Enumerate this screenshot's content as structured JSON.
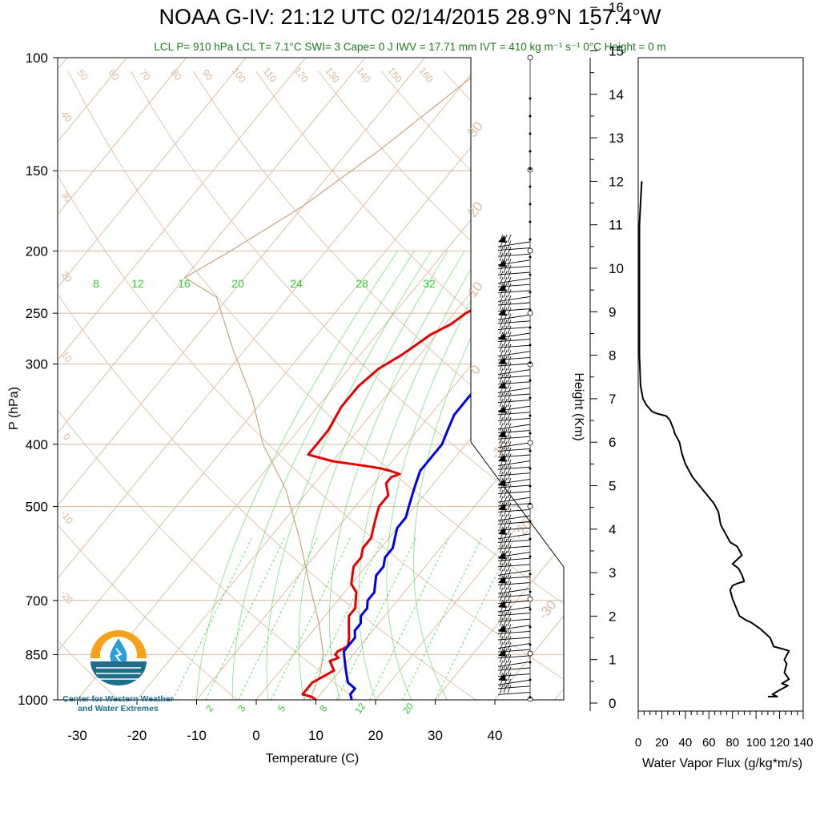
{
  "title": "NOAA G-IV: 21:12 UTC 02/14/2015  28.9°N 157.4°W",
  "subtitle": "LCL P= 910 hPa  LCL T= 7.1°C  SWI= 3  Cape= 0 J  IWV = 17.71 mm  IVT = 410 kg m⁻¹ s⁻¹  0°C Height = 0 m",
  "logo": {
    "line1": "Center for Western Weather",
    "line2": "and Water Extremes",
    "colors": {
      "sun": "#f5a21b",
      "water": "#1f6f8b",
      "drop": "#2b9fd8"
    }
  },
  "colors": {
    "temperature": "#e60000",
    "dewpoint": "#0000e6",
    "isotherms": "#d9b99b",
    "mixing_ratio": "#33cc33",
    "parcel": "#c8a57f",
    "flux": "#000000",
    "subtitle": "#1f7a1f"
  },
  "chart_data": [
    {
      "type": "line",
      "name": "skew-t",
      "xlabel": "Temperature (C)",
      "ylabel": "P (hPa)",
      "xlim": [
        -35,
        52
      ],
      "ylim": [
        1000,
        100
      ],
      "y_scale": "log",
      "x_ticks": [
        -30,
        -20,
        -10,
        0,
        10,
        20,
        30,
        40
      ],
      "y_ticks": [
        100,
        150,
        200,
        250,
        300,
        400,
        500,
        700,
        850,
        1000
      ],
      "grid": true,
      "isotherm_labels_top": [
        50,
        60,
        70,
        80,
        90,
        100,
        110,
        120,
        130,
        140,
        150,
        160
      ],
      "isotherm_labels_left": [
        40,
        30,
        20,
        10,
        0,
        -10,
        -20
      ],
      "isotherm_labels_right": [
        30,
        20,
        10,
        0,
        -10,
        -20,
        -30
      ],
      "mixing_ratio_labels_top": [
        8,
        12,
        16,
        20,
        24,
        28,
        32
      ],
      "mixing_ratio_labels_bottom": [
        2,
        3,
        5,
        8,
        12,
        20
      ],
      "series": [
        {
          "key": "temperature",
          "points": [
            [
              10,
              1000
            ],
            [
              9,
              990
            ],
            [
              7,
              980
            ],
            [
              7,
              960
            ],
            [
              7,
              940
            ],
            [
              8,
              920
            ],
            [
              9,
              900
            ],
            [
              8,
              885
            ],
            [
              7,
              870
            ],
            [
              8,
              860
            ],
            [
              7,
              850
            ],
            [
              7,
              840
            ],
            [
              8,
              825
            ],
            [
              7,
              800
            ],
            [
              6,
              780
            ],
            [
              5,
              760
            ],
            [
              4,
              740
            ],
            [
              4,
              720
            ],
            [
              3,
              700
            ],
            [
              2,
              680
            ],
            [
              0,
              660
            ],
            [
              -1,
              640
            ],
            [
              -2,
              620
            ],
            [
              -2,
              600
            ],
            [
              -3,
              580
            ],
            [
              -3,
              560
            ],
            [
              -4,
              540
            ],
            [
              -5,
              520
            ],
            [
              -6,
              500
            ],
            [
              -6,
              480
            ],
            [
              -7,
              470
            ],
            [
              -8,
              460
            ],
            [
              -8,
              450
            ],
            [
              -7,
              445
            ],
            [
              -9,
              440
            ],
            [
              -11,
              436
            ],
            [
              -14,
              432
            ],
            [
              -20,
              425
            ],
            [
              -25,
              415
            ],
            [
              -25,
              400
            ],
            [
              -25,
              380
            ],
            [
              -26,
              350
            ],
            [
              -26,
              325
            ],
            [
              -25,
              305
            ],
            [
              -23,
              290
            ],
            [
              -22,
              280
            ],
            [
              -21,
              270
            ],
            [
              -19,
              260
            ],
            [
              -18,
              250
            ],
            [
              -16,
              240
            ],
            [
              -15,
              230
            ],
            [
              -14,
              220
            ],
            [
              -13,
              210
            ],
            [
              -12,
              200
            ],
            [
              -12,
              193
            ]
          ]
        },
        {
          "key": "dewpoint",
          "points": [
            [
              16,
              1000
            ],
            [
              15,
              980
            ],
            [
              15,
              960
            ],
            [
              13,
              940
            ],
            [
              12,
              920
            ],
            [
              11,
              900
            ],
            [
              10,
              880
            ],
            [
              9,
              860
            ],
            [
              8,
              840
            ],
            [
              8,
              820
            ],
            [
              8,
              800
            ],
            [
              7,
              780
            ],
            [
              7,
              760
            ],
            [
              6,
              740
            ],
            [
              6,
              720
            ],
            [
              5,
              700
            ],
            [
              5,
              680
            ],
            [
              4,
              660
            ],
            [
              3,
              640
            ],
            [
              3,
              620
            ],
            [
              2,
              600
            ],
            [
              2,
              580
            ],
            [
              1,
              560
            ],
            [
              0,
              540
            ],
            [
              0,
              520
            ],
            [
              -1,
              500
            ],
            [
              -2,
              480
            ],
            [
              -3,
              460
            ],
            [
              -4,
              440
            ],
            [
              -4,
              420
            ],
            [
              -4,
              400
            ],
            [
              -5,
              380
            ],
            [
              -6,
              360
            ],
            [
              -6,
              340
            ],
            [
              -6,
              320
            ],
            [
              -5,
              305
            ],
            [
              -3,
              295
            ],
            [
              -1,
              285
            ],
            [
              0,
              275
            ],
            [
              1,
              265
            ],
            [
              2,
              255
            ],
            [
              3,
              245
            ],
            [
              4,
              235
            ],
            [
              5,
              225
            ],
            [
              6,
              215
            ],
            [
              7,
              205
            ],
            [
              7,
              200
            ],
            [
              7,
              193
            ]
          ]
        },
        {
          "key": "parcel",
          "points": [
            [
              9,
              1000
            ],
            [
              7.1,
              910
            ],
            [
              5,
              850
            ],
            [
              0,
              760
            ],
            [
              -7,
              660
            ],
            [
              -15,
              560
            ],
            [
              -24,
              470
            ],
            [
              -34,
              400
            ],
            [
              -42,
              340
            ],
            [
              -52,
              285
            ],
            [
              -62,
              236
            ],
            [
              -70,
              220
            ],
            [
              -66,
              200
            ],
            [
              -60,
              170
            ],
            [
              -55,
              140
            ],
            [
              -50,
              110
            ],
            [
              -48,
              100
            ]
          ]
        }
      ],
      "wind_barbs": {
        "count": 75,
        "note": "wind barbs along right edge, westerly flow"
      }
    },
    {
      "type": "line",
      "name": "water-vapor-flux",
      "xlabel": "Water Vapor Flux (g/kg*m/s)",
      "ylabel": "Height (Km)",
      "xlim": [
        0,
        140
      ],
      "ylim": [
        0,
        16.4
      ],
      "x_ticks": [
        0,
        20,
        40,
        60,
        80,
        100,
        120,
        140
      ],
      "y_ticks": [
        0,
        1,
        2,
        3,
        4,
        5,
        6,
        7,
        8,
        9,
        10,
        11,
        12,
        13,
        14,
        15,
        16
      ],
      "series": [
        {
          "key": "flux",
          "points": [
            [
              110,
              0.15
            ],
            [
              118,
              0.15
            ],
            [
              114,
              0.2
            ],
            [
              120,
              0.3
            ],
            [
              127,
              0.4
            ],
            [
              122,
              0.45
            ],
            [
              128,
              0.55
            ],
            [
              124,
              0.7
            ],
            [
              126,
              0.9
            ],
            [
              124,
              1.0
            ],
            [
              128,
              1.2
            ],
            [
              122,
              1.25
            ],
            [
              115,
              1.3
            ],
            [
              112,
              1.5
            ],
            [
              104,
              1.7
            ],
            [
              96,
              1.85
            ],
            [
              92,
              1.9
            ],
            [
              86,
              2.0
            ],
            [
              83,
              2.2
            ],
            [
              80,
              2.4
            ],
            [
              78,
              2.6
            ],
            [
              80,
              2.7
            ],
            [
              84,
              2.75
            ],
            [
              90,
              2.8
            ],
            [
              88,
              2.95
            ],
            [
              85,
              3.1
            ],
            [
              80,
              3.2
            ],
            [
              84,
              3.3
            ],
            [
              88,
              3.4
            ],
            [
              84,
              3.6
            ],
            [
              78,
              3.7
            ],
            [
              74,
              3.9
            ],
            [
              70,
              4.1
            ],
            [
              68,
              4.4
            ],
            [
              64,
              4.6
            ],
            [
              58,
              4.8
            ],
            [
              52,
              5.0
            ],
            [
              46,
              5.2
            ],
            [
              40,
              5.5
            ],
            [
              37,
              5.75
            ],
            [
              35,
              6.0
            ],
            [
              31,
              6.2
            ],
            [
              30,
              6.3
            ],
            [
              27,
              6.5
            ],
            [
              24,
              6.6
            ],
            [
              17,
              6.65
            ],
            [
              12,
              6.7
            ],
            [
              7,
              6.85
            ],
            [
              4,
              7.0
            ],
            [
              2,
              7.3
            ],
            [
              1,
              8
            ],
            [
              1,
              9
            ],
            [
              1,
              10
            ],
            [
              1,
              11
            ],
            [
              2,
              11.5
            ],
            [
              3,
              12.0
            ]
          ]
        }
      ]
    }
  ]
}
